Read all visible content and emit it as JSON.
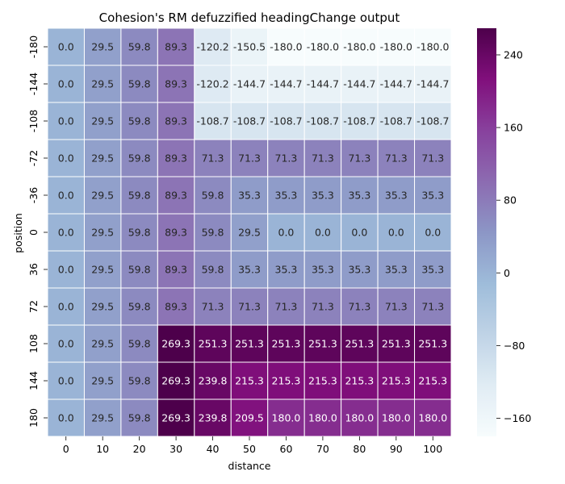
{
  "chart_data": {
    "type": "heatmap",
    "title": "Cohesion's RM defuzzified headingChange output",
    "xlabel": "distance",
    "ylabel": "position",
    "x_categories": [
      "0",
      "10",
      "20",
      "30",
      "40",
      "50",
      "60",
      "70",
      "80",
      "90",
      "100"
    ],
    "y_categories": [
      "-180",
      "-144",
      "-108",
      "-72",
      "-36",
      "0",
      "36",
      "72",
      "108",
      "144",
      "180"
    ],
    "values": [
      [
        0.0,
        29.5,
        59.8,
        89.3,
        -120.2,
        -150.5,
        -180.0,
        -180.0,
        -180.0,
        -180.0,
        -180.0
      ],
      [
        0.0,
        29.5,
        59.8,
        89.3,
        -120.2,
        -144.7,
        -144.7,
        -144.7,
        -144.7,
        -144.7,
        -144.7
      ],
      [
        0.0,
        29.5,
        59.8,
        89.3,
        -108.7,
        -108.7,
        -108.7,
        -108.7,
        -108.7,
        -108.7,
        -108.7
      ],
      [
        0.0,
        29.5,
        59.8,
        89.3,
        71.3,
        71.3,
        71.3,
        71.3,
        71.3,
        71.3,
        71.3
      ],
      [
        0.0,
        29.5,
        59.8,
        89.3,
        59.8,
        35.3,
        35.3,
        35.3,
        35.3,
        35.3,
        35.3
      ],
      [
        0.0,
        29.5,
        59.8,
        89.3,
        59.8,
        29.5,
        0.0,
        0.0,
        0.0,
        0.0,
        0.0
      ],
      [
        0.0,
        29.5,
        59.8,
        89.3,
        59.8,
        35.3,
        35.3,
        35.3,
        35.3,
        35.3,
        35.3
      ],
      [
        0.0,
        29.5,
        59.8,
        89.3,
        71.3,
        71.3,
        71.3,
        71.3,
        71.3,
        71.3,
        71.3
      ],
      [
        0.0,
        29.5,
        59.8,
        269.3,
        251.3,
        251.3,
        251.3,
        251.3,
        251.3,
        251.3,
        251.3
      ],
      [
        0.0,
        29.5,
        59.8,
        269.3,
        239.8,
        215.3,
        215.3,
        215.3,
        215.3,
        215.3,
        215.3
      ],
      [
        0.0,
        29.5,
        59.8,
        269.3,
        239.8,
        209.5,
        180.0,
        180.0,
        180.0,
        180.0,
        180.0
      ]
    ],
    "value_range": [
      -180,
      269.3
    ],
    "colorbar_ticks": [
      240,
      160,
      80,
      0,
      -80,
      -160
    ],
    "colormap": "BuPu",
    "colormap_stops": [
      "#f7fcfd",
      "#e0ecf4",
      "#bfd3e6",
      "#9ebcda",
      "#8c96c6",
      "#8c6bb1",
      "#88419d",
      "#810f7c",
      "#4d004b"
    ],
    "grid_line_color": "#ffffff",
    "annotations": true
  }
}
